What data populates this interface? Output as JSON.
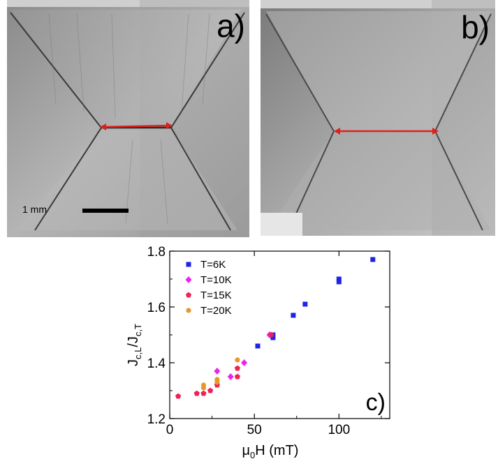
{
  "panels": {
    "a": {
      "label": "a)",
      "scale_bar": "1 mm"
    },
    "b": {
      "label": "b)"
    }
  },
  "colors": {
    "arrow": "#e0201c",
    "series_T6K": "#1f23e6",
    "series_T10K": "#ee22ee",
    "series_T15K": "#ee2255",
    "series_T20K": "#e8962e"
  },
  "chart_data": {
    "type": "scatter",
    "panel_label": "c)",
    "xlabel": "μ0H (mT)",
    "xlabel_main": "μ",
    "xlabel_sub": "0",
    "xlabel_rest": "H (mT)",
    "ylabel": "Jc,L/Jc,T",
    "xlim": [
      0,
      130
    ],
    "ylim": [
      1.2,
      1.8
    ],
    "x_ticks": [
      0,
      50,
      100
    ],
    "y_ticks": [
      "1.2",
      "1.4",
      "1.6",
      "1.8"
    ],
    "grid": false,
    "legend_position": "top-left",
    "series": [
      {
        "name": "T=6K",
        "marker": "square",
        "color": "#1f23e6",
        "points": [
          [
            52,
            1.46
          ],
          [
            61,
            1.49
          ],
          [
            61,
            1.5
          ],
          [
            73,
            1.57
          ],
          [
            80,
            1.61
          ],
          [
            100,
            1.69
          ],
          [
            100,
            1.7
          ],
          [
            120,
            1.77
          ]
        ]
      },
      {
        "name": "T=10K",
        "marker": "diamond",
        "color": "#ee22ee",
        "points": [
          [
            28,
            1.37
          ],
          [
            36,
            1.35
          ],
          [
            44,
            1.4
          ],
          [
            59,
            1.5
          ]
        ]
      },
      {
        "name": "T=15K",
        "marker": "pentagon",
        "color": "#ee2255",
        "points": [
          [
            5,
            1.28
          ],
          [
            16,
            1.29
          ],
          [
            20,
            1.29
          ],
          [
            24,
            1.3
          ],
          [
            28,
            1.32
          ],
          [
            40,
            1.35
          ],
          [
            40,
            1.38
          ],
          [
            60,
            1.5
          ]
        ]
      },
      {
        "name": "T=20K",
        "marker": "circle",
        "color": "#e8962e",
        "points": [
          [
            20,
            1.31
          ],
          [
            20,
            1.32
          ],
          [
            28,
            1.33
          ],
          [
            28,
            1.34
          ],
          [
            40,
            1.41
          ]
        ]
      }
    ]
  }
}
